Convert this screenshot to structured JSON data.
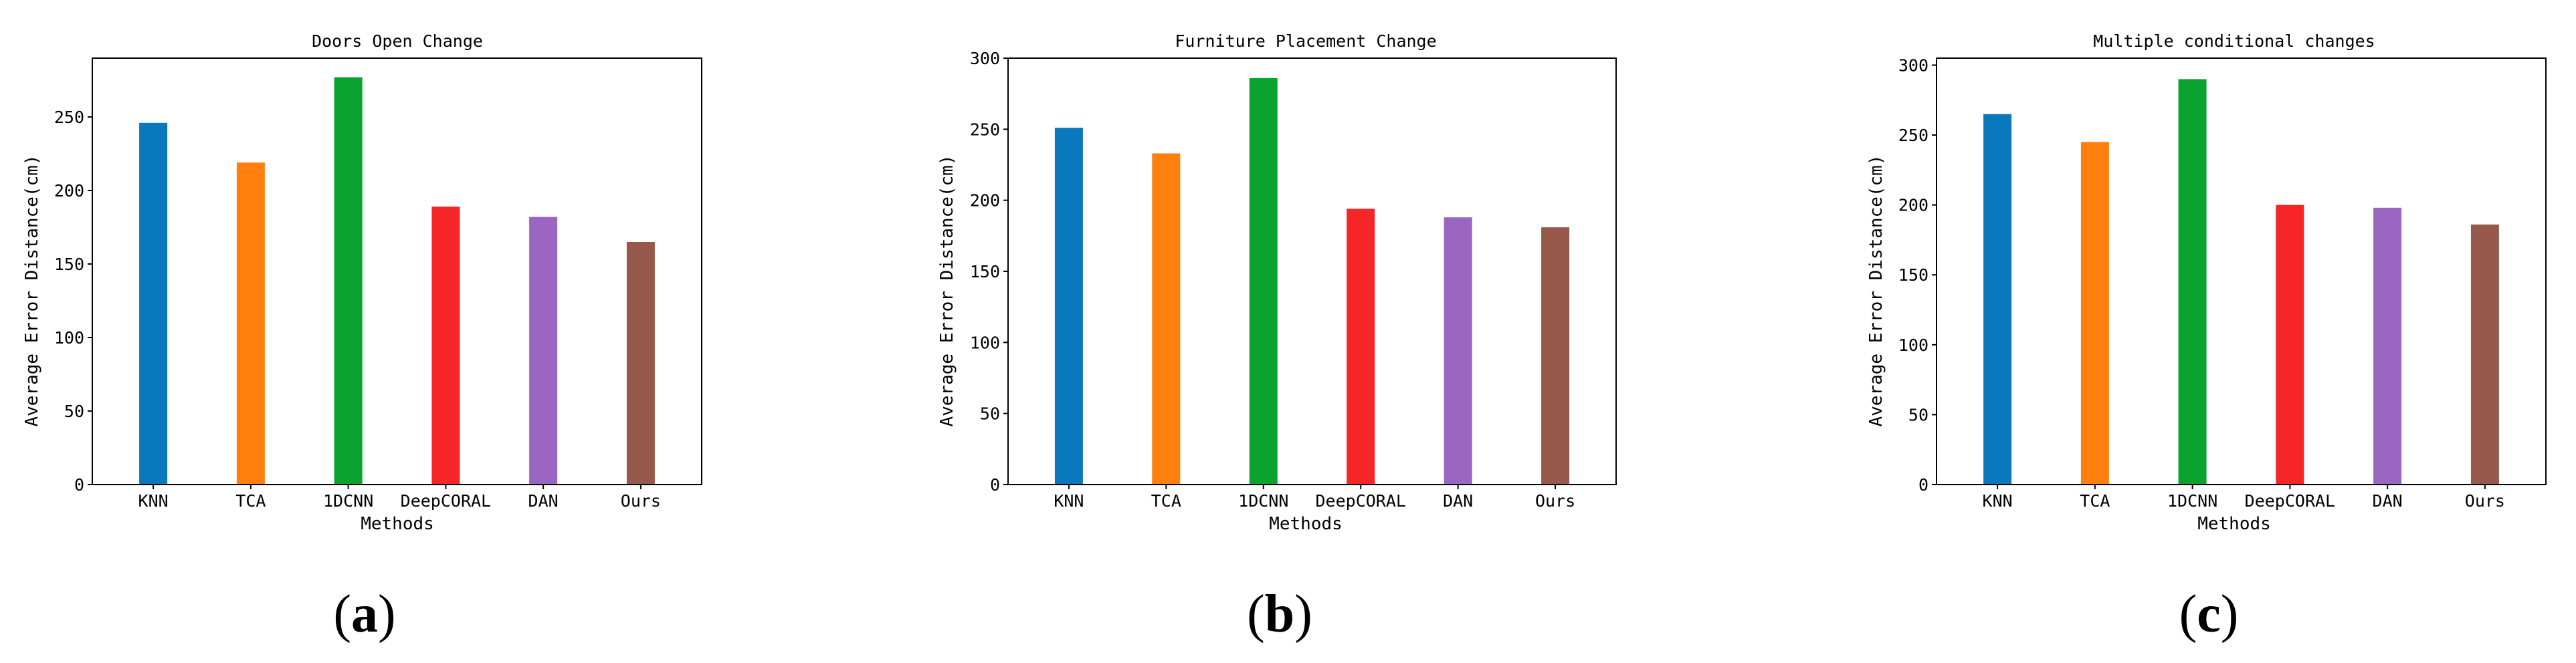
{
  "chart_data": [
    {
      "type": "bar",
      "title": "Doors Open Change",
      "xlabel": "Methods",
      "ylabel": "Average Error Distance(cm)",
      "categories": [
        "KNN",
        "TCA",
        "1DCNN",
        "DeepCORAL",
        "DAN",
        "Ours"
      ],
      "values": [
        246,
        219,
        277,
        189,
        182,
        165
      ],
      "colors": [
        "#0a78bd",
        "#ff7f0e",
        "#0aa330",
        "#f52528",
        "#9a66c1",
        "#97594c"
      ],
      "ylim": [
        0,
        290
      ],
      "yticks": [
        0,
        50,
        100,
        150,
        200,
        250
      ],
      "caption": {
        "open": "(",
        "letter": "a",
        "close": ")"
      }
    },
    {
      "type": "bar",
      "title": "Furniture Placement Change",
      "xlabel": "Methods",
      "ylabel": "Average Error Distance(cm)",
      "categories": [
        "KNN",
        "TCA",
        "1DCNN",
        "DeepCORAL",
        "DAN",
        "Ours"
      ],
      "values": [
        251,
        233,
        286,
        194,
        188,
        181
      ],
      "colors": [
        "#0a78bd",
        "#ff7f0e",
        "#0aa330",
        "#f52528",
        "#9a66c1",
        "#97594c"
      ],
      "ylim": [
        0,
        300
      ],
      "yticks": [
        0,
        50,
        100,
        150,
        200,
        250,
        300
      ],
      "caption": {
        "open": "(",
        "letter": "b",
        "close": ")"
      }
    },
    {
      "type": "bar",
      "title": "Multiple conditional changes",
      "xlabel": "Methods",
      "ylabel": "Average Error Distance(cm)",
      "categories": [
        "KNN",
        "TCA",
        "1DCNN",
        "DeepCORAL",
        "DAN",
        "Ours"
      ],
      "values": [
        265,
        245,
        290,
        200,
        198,
        186
      ],
      "colors": [
        "#0a78bd",
        "#ff7f0e",
        "#0aa330",
        "#f52528",
        "#9a66c1",
        "#97594c"
      ],
      "ylim": [
        0,
        305
      ],
      "yticks": [
        0,
        50,
        100,
        150,
        200,
        250,
        300
      ],
      "caption": {
        "open": "(",
        "letter": "c",
        "close": ")"
      }
    }
  ]
}
